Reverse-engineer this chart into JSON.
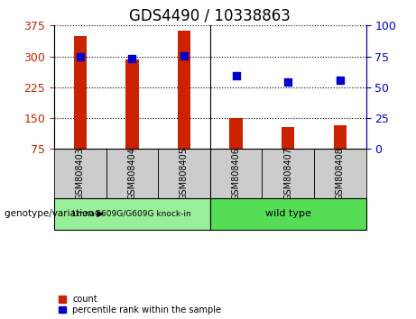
{
  "title": "GDS4490 / 10338863",
  "samples": [
    "GSM808403",
    "GSM808404",
    "GSM808405",
    "GSM808406",
    "GSM808407",
    "GSM808408"
  ],
  "counts": [
    350,
    293,
    363,
    150,
    128,
    133
  ],
  "percentile_ranks": [
    75,
    73,
    75.5,
    59,
    54,
    56
  ],
  "ylim_left": [
    75,
    375
  ],
  "yticks_left": [
    75,
    150,
    225,
    300,
    375
  ],
  "ylim_right": [
    0,
    100
  ],
  "yticks_right": [
    0,
    25,
    50,
    75,
    100
  ],
  "bar_color": "#cc2200",
  "dot_color": "#0000cc",
  "title_fontsize": 12,
  "bar_width": 0.25,
  "groups": [
    {
      "label": "LmnaG609G/G609G knock-in",
      "n": 3,
      "color": "#99ee99"
    },
    {
      "label": "wild type",
      "n": 3,
      "color": "#55dd55"
    }
  ],
  "group_label_prefix": "genotype/variation",
  "legend_items": [
    {
      "label": "count",
      "color": "#cc2200"
    },
    {
      "label": "percentile rank within the sample",
      "color": "#0000cc"
    }
  ],
  "left_tick_color": "#cc2200",
  "right_tick_color": "#0000cc",
  "sample_box_color": "#cccccc",
  "dot_size": 28
}
